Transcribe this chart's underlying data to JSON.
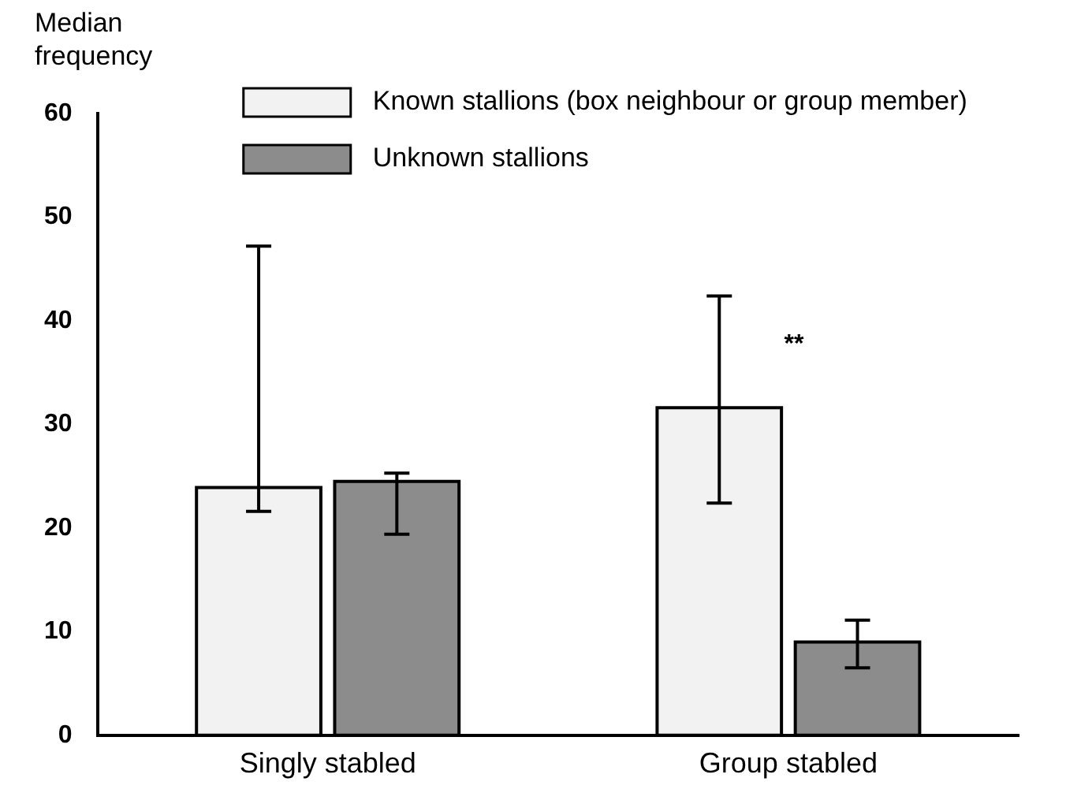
{
  "chart_data": {
    "type": "bar",
    "ylabel": "Median frequency",
    "categories": [
      "Singly stabled",
      "Group stabled"
    ],
    "series": [
      {
        "name": "Known stallions (box neighbour or group member)",
        "color": "#f2f2f2",
        "values": [
          23.9,
          31.6
        ],
        "errors": [
          [
            21.6,
            47.2
          ],
          [
            22.4,
            42.4
          ]
        ]
      },
      {
        "name": "Unknown stallions",
        "color": "#8c8c8c",
        "values": [
          24.5,
          9.0
        ],
        "errors": [
          [
            19.4,
            25.3
          ],
          [
            6.5,
            11.1
          ]
        ]
      }
    ],
    "ylim": [
      0,
      60
    ],
    "yticks": [
      0,
      10,
      20,
      30,
      40,
      50,
      60
    ],
    "grid": false,
    "legend": "top",
    "annotations": [
      "**"
    ]
  }
}
